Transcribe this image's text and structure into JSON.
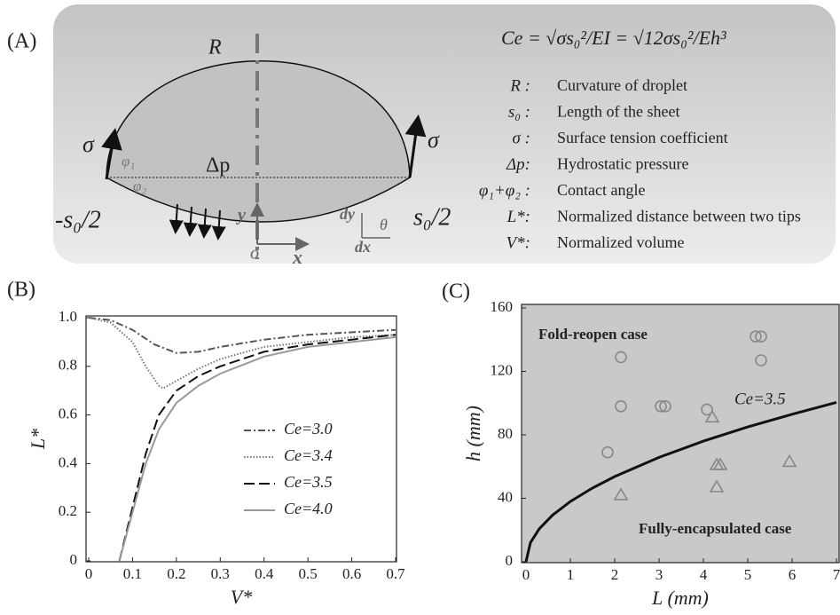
{
  "panel_labels": [
    "(A)",
    "(B)",
    "(C)"
  ],
  "diagram": {
    "formula": "Ce = √σs₀²/EI = √12σs₀²/Eh³",
    "labels": {
      "R": "R",
      "sigma_left": "σ",
      "sigma_right": "σ",
      "dp": "Δp",
      "phi1": "φ₁",
      "phi2": "φ₂",
      "left_tip": "-s₀/2",
      "right_tip": "s₀/2",
      "y": "y",
      "o": "o",
      "x": "x",
      "dy": "dy",
      "dx": "dx",
      "theta": "θ"
    },
    "definitions": [
      {
        "symbol": "R :",
        "text": "Curvature of droplet"
      },
      {
        "symbol": "s₀ :",
        "text": "Length of the sheet"
      },
      {
        "symbol": "σ :",
        "text": "Surface tension coefficient"
      },
      {
        "symbol": "Δp:",
        "text": "Hydrostatic pressure"
      },
      {
        "symbol": "φ₁+φ₂ :",
        "text": "Contact angle"
      },
      {
        "symbol": "L*:",
        "text": "Normalized distance between two tips"
      },
      {
        "symbol": "V*:",
        "text": "Normalized volume"
      }
    ]
  },
  "chart_data": [
    {
      "type": "line",
      "x_label": "V*",
      "y_label": "L*",
      "xlim": [
        0,
        0.7
      ],
      "ylim": [
        0,
        1
      ],
      "xticks": [
        0,
        0.1,
        0.2,
        0.3,
        0.4,
        0.5,
        0.6,
        0.7
      ],
      "yticks": [
        0,
        0.2,
        0.4,
        0.6,
        0.8,
        {
          "value": 1,
          "label": "1.0"
        }
      ],
      "series": [
        {
          "name": "Ce=3.0",
          "color": "#555555",
          "dash": "8 3 2 3",
          "x": [
            0,
            0.05,
            0.1,
            0.15,
            0.2,
            0.25,
            0.3,
            0.4,
            0.5,
            0.6,
            0.7
          ],
          "values": [
            1,
            0.99,
            0.95,
            0.89,
            0.855,
            0.86,
            0.88,
            0.91,
            0.93,
            0.94,
            0.95
          ]
        },
        {
          "name": "Ce=3.4",
          "color": "#777777",
          "dash": "1.5 2",
          "x": [
            0,
            0.05,
            0.1,
            0.13,
            0.16,
            0.17,
            0.2,
            0.25,
            0.3,
            0.4,
            0.5,
            0.6,
            0.7
          ],
          "values": [
            1,
            0.98,
            0.9,
            0.8,
            0.72,
            0.71,
            0.74,
            0.79,
            0.83,
            0.88,
            0.9,
            0.92,
            0.93
          ]
        },
        {
          "name": "Ce=3.5",
          "color": "#111111",
          "dash": "12 5",
          "x": [
            0.07,
            0.1,
            0.13,
            0.16,
            0.2,
            0.25,
            0.3,
            0.4,
            0.5,
            0.6,
            0.7
          ],
          "values": [
            0,
            0.22,
            0.44,
            0.6,
            0.7,
            0.76,
            0.8,
            0.86,
            0.89,
            0.91,
            0.93
          ]
        },
        {
          "name": "Ce=4.0",
          "color": "#999999",
          "dash": "none",
          "x": [
            0.07,
            0.1,
            0.13,
            0.16,
            0.2,
            0.25,
            0.3,
            0.4,
            0.5,
            0.6,
            0.7
          ],
          "values": [
            0,
            0.2,
            0.4,
            0.54,
            0.65,
            0.72,
            0.77,
            0.84,
            0.88,
            0.9,
            0.92
          ]
        }
      ]
    },
    {
      "type": "scatter",
      "x_label": "L (mm)",
      "y_label": "h (mm)",
      "xlim": [
        0,
        7
      ],
      "ylim": [
        0,
        160
      ],
      "xticks": [
        0,
        1,
        2,
        3,
        4,
        5,
        6,
        7
      ],
      "yticks": [
        0,
        40,
        80,
        120,
        160
      ],
      "annotations": [
        "Fold-reopen case",
        "Fully-encapsulated case"
      ],
      "series": [
        {
          "name": "Ce=3.5",
          "style": "line",
          "color": "#111111",
          "x": [
            0,
            0.1,
            0.3,
            0.6,
            1,
            1.5,
            2,
            3,
            4,
            5,
            6,
            7
          ],
          "values": [
            0,
            12,
            20.8,
            29.4,
            38,
            46.5,
            53.7,
            65.8,
            76,
            85,
            93,
            100.5
          ]
        },
        {
          "style": "circle",
          "color": "#888888",
          "x": [
            1.84,
            2.14,
            2.14,
            3.04,
            3.14,
            4.08,
            5.18,
            5.3,
            5.3
          ],
          "values": [
            69,
            129,
            98,
            98,
            98,
            96,
            142,
            142,
            127
          ]
        },
        {
          "style": "triangle",
          "color": "#888888",
          "x": [
            2.14,
            4.2,
            4.3,
            4.38,
            4.3,
            5.94
          ],
          "values": [
            42,
            91,
            61,
            61,
            47,
            63
          ]
        }
      ]
    }
  ]
}
